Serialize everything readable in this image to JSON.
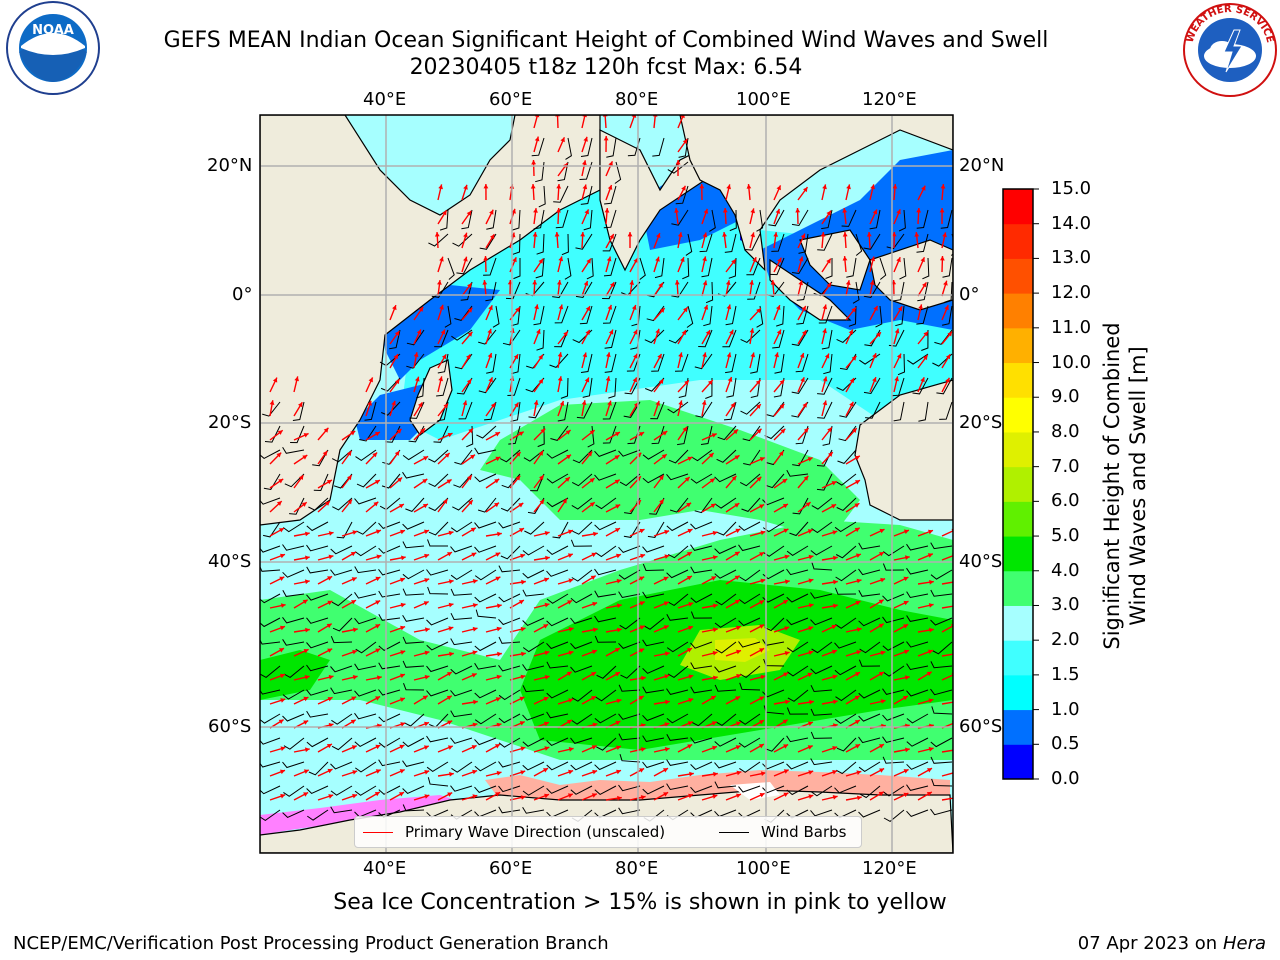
{
  "header": {
    "title_line1": "GEFS MEAN Indian Ocean Significant Height of Combined Wind Waves and Swell",
    "title_line2": "20230405 t18z 120h fcst   Max: 6.54"
  },
  "logos": {
    "left": {
      "icon": "noaa-logo-icon",
      "text": "NOAA"
    },
    "right": {
      "icon": "nws-logo-icon",
      "text": "NATIONAL WEATHER SERVICE"
    }
  },
  "map": {
    "lon_labels": [
      "40°E",
      "60°E",
      "80°E",
      "100°E",
      "120°E"
    ],
    "lat_labels": [
      "20°N",
      "0°",
      "20°S",
      "40°S",
      "60°S"
    ],
    "colors": {
      "land": "#efecdc",
      "grid": "#b0b0b0",
      "wave_arrow": "#ff0000",
      "wind_barb": "#000000"
    }
  },
  "colorbar": {
    "label_line1": "Significant Height of Combined",
    "label_line2": "Wind Waves and Swell [m]",
    "ticks": [
      "0.0",
      "0.5",
      "1.0",
      "1.5",
      "2.0",
      "3.0",
      "4.0",
      "5.0",
      "6.0",
      "7.0",
      "8.0",
      "9.0",
      "10.0",
      "11.0",
      "12.0",
      "13.0",
      "14.0",
      "15.0"
    ],
    "colors": [
      "#0000ff",
      "#0070ff",
      "#00ffff",
      "#40ffff",
      "#a6ffff",
      "#40ff70",
      "#00e600",
      "#60f000",
      "#b0f000",
      "#dff000",
      "#ffff00",
      "#ffe000",
      "#ffb000",
      "#ff8000",
      "#ff5000",
      "#ff2a00",
      "#ff0000"
    ]
  },
  "legend": {
    "items": [
      {
        "label": "Primary Wave Direction (unscaled)",
        "color": "#ff0000"
      },
      {
        "label": "Wind Barbs",
        "color": "#000000"
      }
    ]
  },
  "caption": "Sea Ice Concentration > 15% is shown in pink to yellow",
  "footer": {
    "left": "NCEP/EMC/Verification Post Processing Product Generation Branch",
    "right_prefix": "07 Apr 2023 on ",
    "right_host": "Hera"
  }
}
